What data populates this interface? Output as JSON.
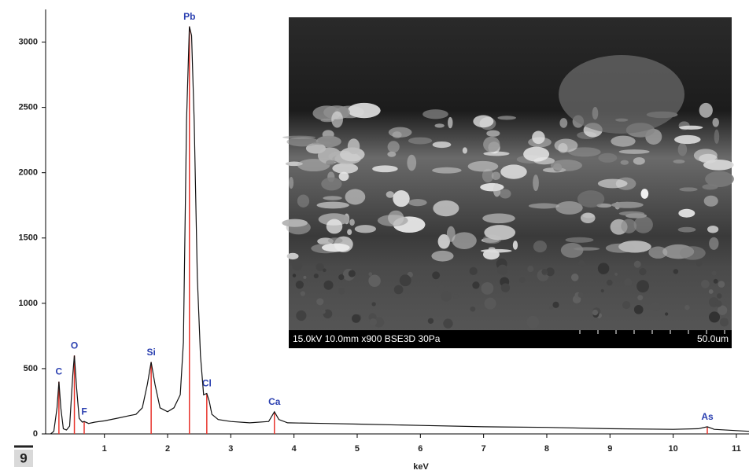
{
  "chart_data": {
    "type": "line",
    "x_label": "keV",
    "xlim": [
      0.07,
      11.2
    ],
    "ylim": [
      0,
      3250
    ],
    "xticks": [
      1,
      2,
      3,
      4,
      5,
      6,
      7,
      8,
      9,
      10,
      11
    ],
    "yticks": [
      0,
      500,
      1000,
      1500,
      2000,
      2500,
      3000
    ],
    "color": "#111111",
    "x": [
      0.15,
      0.2,
      0.25,
      0.28,
      0.31,
      0.35,
      0.4,
      0.45,
      0.5,
      0.525,
      0.56,
      0.6,
      0.65,
      0.68,
      0.75,
      0.85,
      1.0,
      1.2,
      1.4,
      1.5,
      1.6,
      1.68,
      1.74,
      1.8,
      1.88,
      2.0,
      2.1,
      2.2,
      2.25,
      2.3,
      2.345,
      2.38,
      2.42,
      2.47,
      2.52,
      2.57,
      2.62,
      2.66,
      2.7,
      2.8,
      3.0,
      3.3,
      3.6,
      3.69,
      3.76,
      3.9,
      4.5,
      5,
      6,
      7,
      8,
      9,
      10,
      10.4,
      10.54,
      10.65,
      11,
      11.2
    ],
    "values": [
      0,
      20,
      200,
      400,
      200,
      40,
      30,
      60,
      450,
      600,
      350,
      120,
      90,
      95,
      80,
      90,
      100,
      120,
      140,
      150,
      200,
      380,
      550,
      380,
      200,
      170,
      200,
      300,
      700,
      2400,
      3120,
      3050,
      2400,
      1200,
      600,
      300,
      310,
      250,
      150,
      110,
      95,
      85,
      95,
      170,
      110,
      85,
      80,
      75,
      65,
      55,
      50,
      40,
      35,
      40,
      55,
      35,
      25,
      20
    ],
    "peaks": {
      "color": "#e8342c",
      "labels": [
        "C",
        "O",
        "F",
        "Si",
        "Pb",
        "Cl",
        "Ca",
        "As"
      ],
      "energies": [
        0.28,
        0.525,
        0.68,
        1.74,
        2.345,
        2.62,
        3.69,
        10.54
      ],
      "heights": [
        400,
        600,
        95,
        550,
        3120,
        310,
        170,
        55
      ]
    }
  },
  "inset": {
    "caption": "15.0kV 10.0mm x900 BSE3D 30Pa",
    "scale_label": "50.0um"
  },
  "figure_label": "9"
}
